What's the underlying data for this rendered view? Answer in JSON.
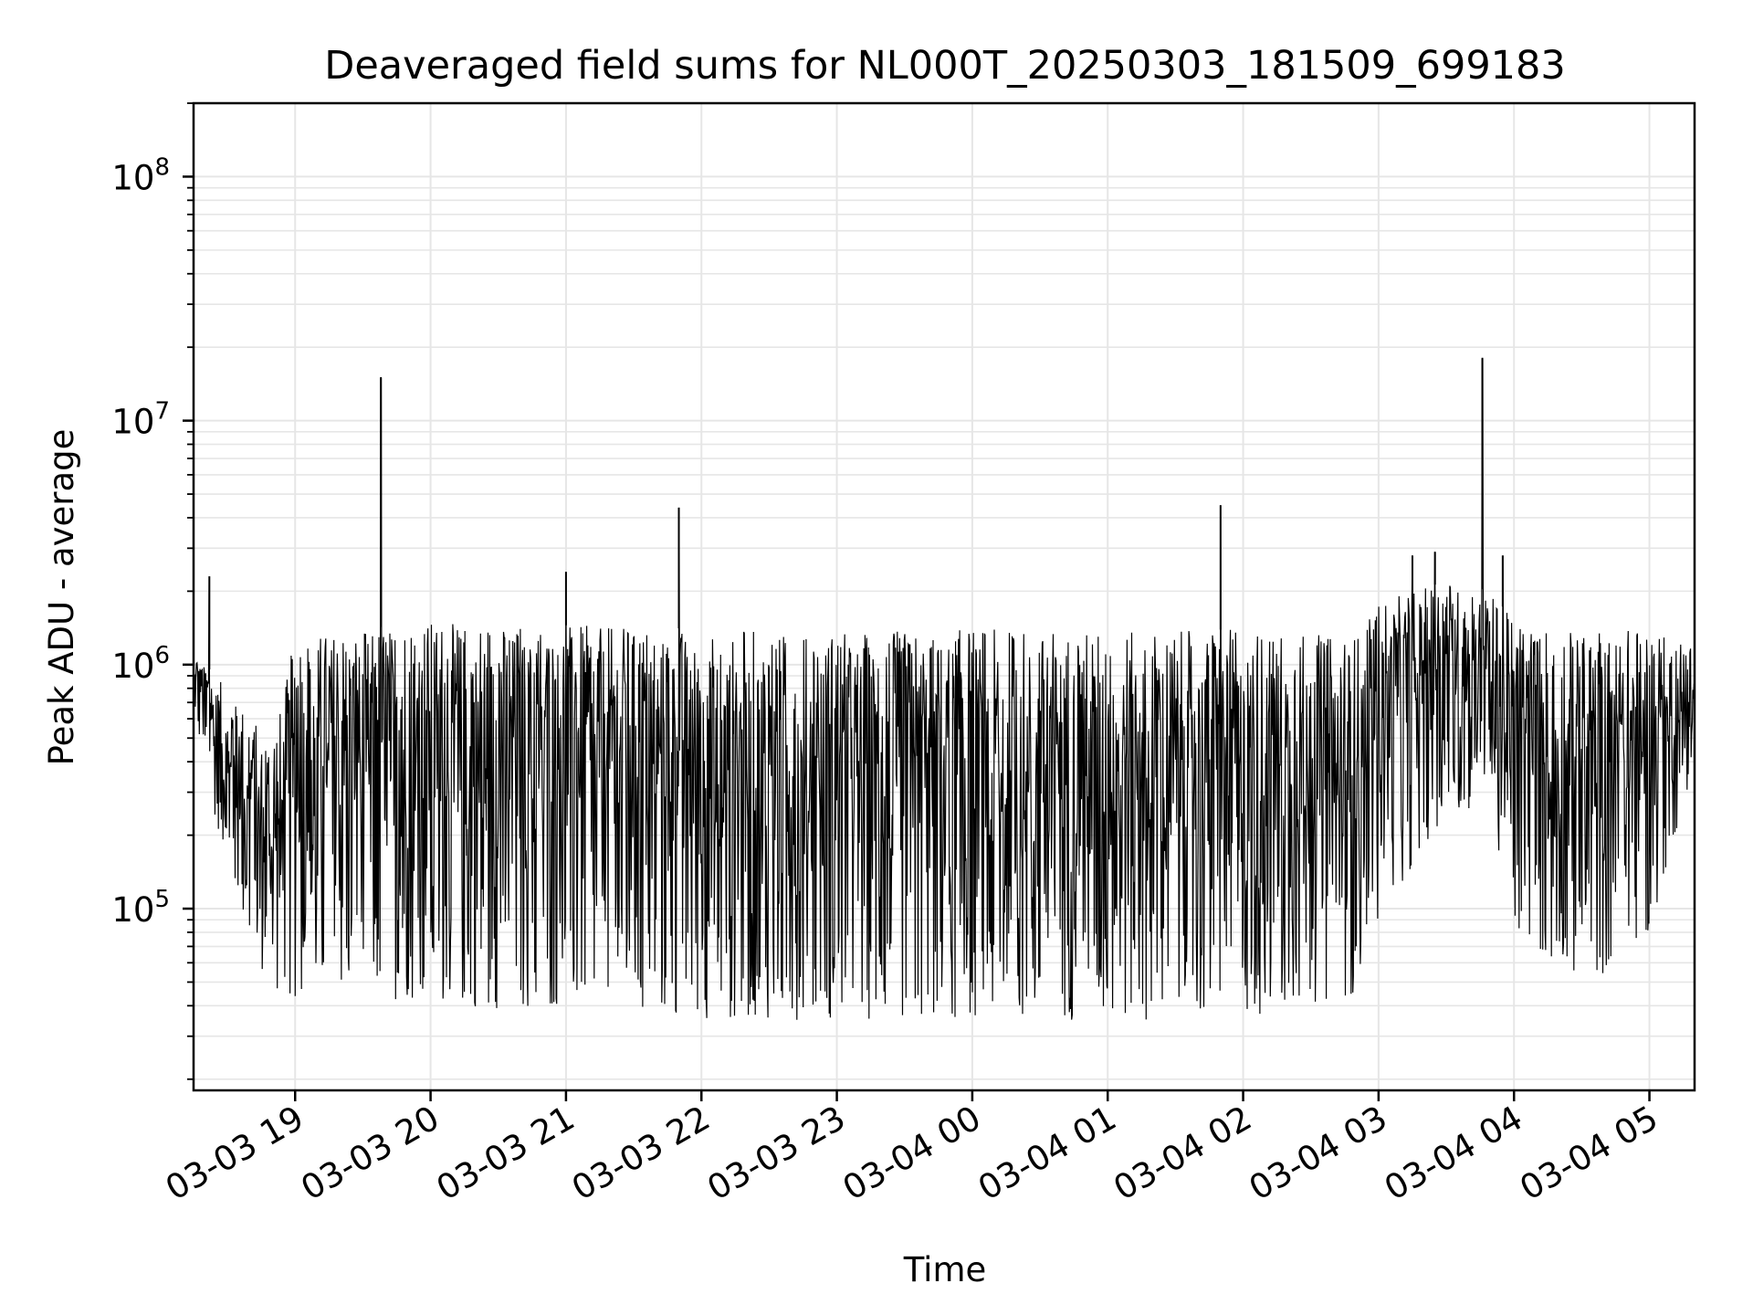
{
  "chart_data": {
    "type": "line",
    "title": "Deaveraged field sums for NL000T_20250303_181509_699183",
    "xlabel": "Time",
    "ylabel": "Peak ADU - average",
    "yscale": "log",
    "ylim": [
      18000,
      200000000
    ],
    "xlim": [
      "2025-03-03 18:15",
      "2025-03-04 05:20"
    ],
    "grid": true,
    "line_color": "#000000",
    "x_ticks": [
      "03-03 19",
      "03-03 20",
      "03-03 21",
      "03-03 22",
      "03-03 23",
      "03-04 00",
      "03-04 01",
      "03-04 02",
      "03-04 03",
      "03-04 04",
      "03-04 05"
    ],
    "y_ticks": [
      {
        "base": "10",
        "exp": "5",
        "value": 100000
      },
      {
        "base": "10",
        "exp": "6",
        "value": 1000000
      },
      {
        "base": "10",
        "exp": "7",
        "value": 10000000
      },
      {
        "base": "10",
        "exp": "8",
        "value": 100000000
      }
    ],
    "series": [
      {
        "envelope": [
          {
            "x": "2025-03-03 18:15",
            "low": 700000,
            "high": 1100000
          },
          {
            "x": "2025-03-03 18:20",
            "low": 350000,
            "high": 1000000
          },
          {
            "x": "2025-03-03 18:30",
            "low": 150000,
            "high": 800000
          },
          {
            "x": "2025-03-03 18:40",
            "low": 70000,
            "high": 600000
          },
          {
            "x": "2025-03-03 18:50",
            "low": 45000,
            "high": 500000
          },
          {
            "x": "2025-03-03 19:00",
            "low": 42000,
            "high": 1300000
          },
          {
            "x": "2025-03-03 19:30",
            "low": 45000,
            "high": 1400000
          },
          {
            "x": "2025-03-03 20:00",
            "low": 40000,
            "high": 1500000
          },
          {
            "x": "2025-03-03 21:00",
            "low": 38000,
            "high": 1450000
          },
          {
            "x": "2025-03-03 22:00",
            "low": 35000,
            "high": 1400000
          },
          {
            "x": "2025-03-03 23:00",
            "low": 35000,
            "high": 1350000
          },
          {
            "x": "2025-03-04 00:00",
            "low": 35000,
            "high": 1400000
          },
          {
            "x": "2025-03-04 01:00",
            "low": 35000,
            "high": 1350000
          },
          {
            "x": "2025-03-04 02:00",
            "low": 35000,
            "high": 1400000
          },
          {
            "x": "2025-03-04 02:50",
            "low": 45000,
            "high": 1300000
          },
          {
            "x": "2025-03-04 03:00",
            "low": 90000,
            "high": 1800000
          },
          {
            "x": "2025-03-04 03:30",
            "low": 250000,
            "high": 2200000
          },
          {
            "x": "2025-03-04 03:50",
            "low": 250000,
            "high": 2000000
          },
          {
            "x": "2025-03-04 04:00",
            "low": 80000,
            "high": 1500000
          },
          {
            "x": "2025-03-04 04:30",
            "low": 45000,
            "high": 1400000
          },
          {
            "x": "2025-03-04 05:00",
            "low": 80000,
            "high": 1400000
          },
          {
            "x": "2025-03-04 05:20",
            "low": 400000,
            "high": 1200000
          }
        ],
        "spikes": [
          {
            "x": "2025-03-03 18:22",
            "y": 2300000
          },
          {
            "x": "2025-03-03 19:38",
            "y": 15000000
          },
          {
            "x": "2025-03-03 21:00",
            "y": 2400000
          },
          {
            "x": "2025-03-03 21:50",
            "y": 4400000
          },
          {
            "x": "2025-03-04 01:50",
            "y": 4500000
          },
          {
            "x": "2025-03-04 03:15",
            "y": 2800000
          },
          {
            "x": "2025-03-04 03:46",
            "y": 18000000
          },
          {
            "x": "2025-03-04 03:25",
            "y": 2900000
          },
          {
            "x": "2025-03-04 03:55",
            "y": 2800000
          }
        ]
      }
    ]
  }
}
